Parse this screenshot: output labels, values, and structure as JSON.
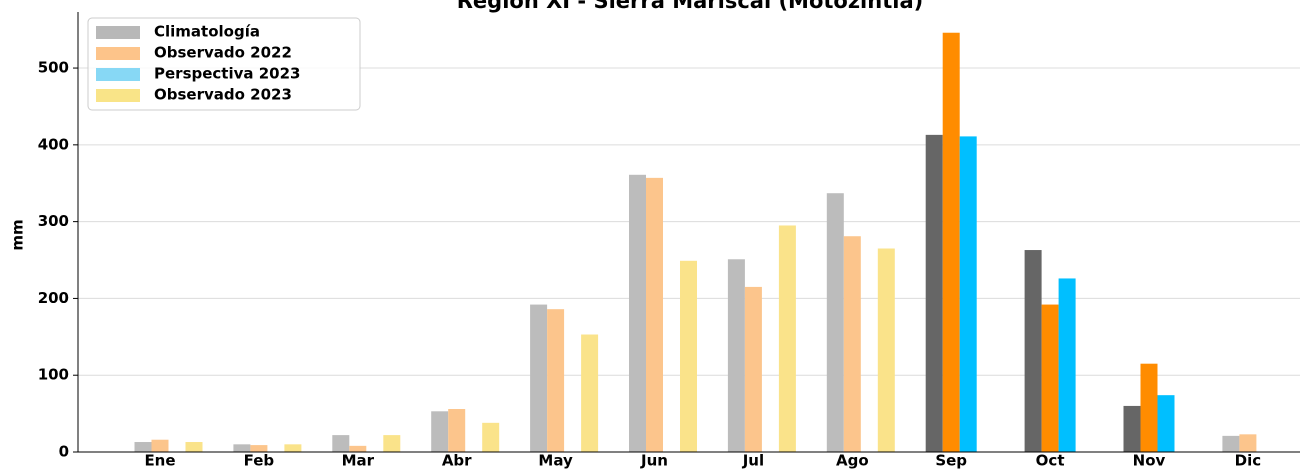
{
  "chart_data": {
    "type": "bar",
    "title": "Región XI - Sierra Mariscal (Motozintla)",
    "y_label": "mm",
    "categories": [
      "Ene",
      "Feb",
      "Mar",
      "Abr",
      "May",
      "Jun",
      "Jul",
      "Ago",
      "Sep",
      "Oct",
      "Nov",
      "Dic"
    ],
    "series": [
      {
        "name": "Climatología",
        "color": "#b8b8b8",
        "colors": [
          "#bcbcbc",
          "#bcbcbc",
          "#bcbcbc",
          "#bcbcbc",
          "#bcbcbc",
          "#bcbcbc",
          "#bcbcbc",
          "#bcbcbc",
          "#666666",
          "#666666",
          "#666666",
          "#bcbcbc"
        ],
        "values": [
          13,
          10,
          22,
          53,
          192,
          361,
          251,
          337,
          413,
          263,
          60,
          21
        ]
      },
      {
        "name": "Observado 2022",
        "color": "#fdc48a",
        "colors": [
          "#fcc58c",
          "#fcc58c",
          "#fcc58c",
          "#fcc58c",
          "#fcc58c",
          "#fcc58c",
          "#fcc58c",
          "#fcc58c",
          "#ff8c00",
          "#ff8c00",
          "#ff8c00",
          "#fcc58c"
        ],
        "values": [
          16,
          9,
          8,
          56,
          186,
          357,
          215,
          281,
          546,
          192,
          115,
          23
        ]
      },
      {
        "name": "Perspectiva 2023",
        "color": "#87d8f5",
        "colors": [
          "#87d8f5",
          "#87d8f5",
          "#87d8f5",
          "#87d8f5",
          "#87d8f5",
          "#87d8f5",
          "#87d8f5",
          "#87d8f5",
          "#00bfff",
          "#00bfff",
          "#00bfff",
          "#87d8f5"
        ],
        "values": [
          null,
          null,
          null,
          null,
          null,
          null,
          null,
          null,
          411,
          226,
          74,
          null
        ]
      },
      {
        "name": "Observado 2023",
        "color": "#f9e488",
        "colors": [
          "#fae38a",
          "#fae38a",
          "#fae38a",
          "#fae38a",
          "#fae38a",
          "#fae38a",
          "#fae38a",
          "#fae38a",
          "#fae38a",
          "#fae38a",
          "#fae38a",
          "#fae38a"
        ],
        "values": [
          13,
          10,
          22,
          38,
          153,
          249,
          295,
          265,
          null,
          null,
          null,
          null
        ]
      }
    ],
    "ylim": [
      0,
      573
    ],
    "yticks": [
      0,
      100,
      200,
      300,
      400,
      500
    ],
    "grid": true,
    "legend": "upper left"
  }
}
